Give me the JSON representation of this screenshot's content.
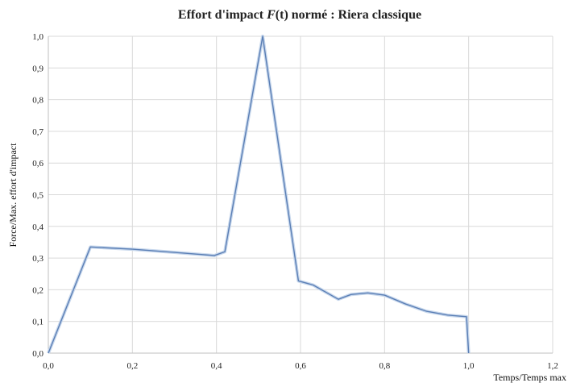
{
  "chart_data": {
    "type": "line",
    "title": {
      "prefix": "Effort d'impact ",
      "variable": "F",
      "argument": "(t)",
      "suffix": " normé : Riera classique"
    },
    "xlabel": "Temps/Temps max",
    "ylabel": "Force/Max. effort d'impact",
    "xlim": [
      0,
      1.2
    ],
    "ylim": [
      0,
      1.0
    ],
    "xticks": [
      "0,0",
      "0,2",
      "0,4",
      "0,6",
      "0,8",
      "1,0",
      "1,2"
    ],
    "yticks": [
      "0,0",
      "0,1",
      "0,2",
      "0,3",
      "0,4",
      "0,5",
      "0,6",
      "0,7",
      "0,8",
      "0,9",
      "1,0"
    ],
    "grid": true,
    "series": [
      {
        "x": [
          0.0,
          0.1,
          0.2,
          0.3,
          0.395,
          0.42,
          0.51,
          0.595,
          0.63,
          0.69,
          0.72,
          0.76,
          0.8,
          0.85,
          0.9,
          0.95,
          0.995,
          1.0
        ],
        "y": [
          0.0,
          0.335,
          0.328,
          0.318,
          0.308,
          0.32,
          1.0,
          0.228,
          0.215,
          0.17,
          0.185,
          0.19,
          0.183,
          0.155,
          0.132,
          0.12,
          0.115,
          0.0
        ]
      }
    ],
    "colors": {
      "line": "#5b7fb5",
      "glow": "#c7d7ec",
      "grid": "#d9d9d9"
    }
  }
}
